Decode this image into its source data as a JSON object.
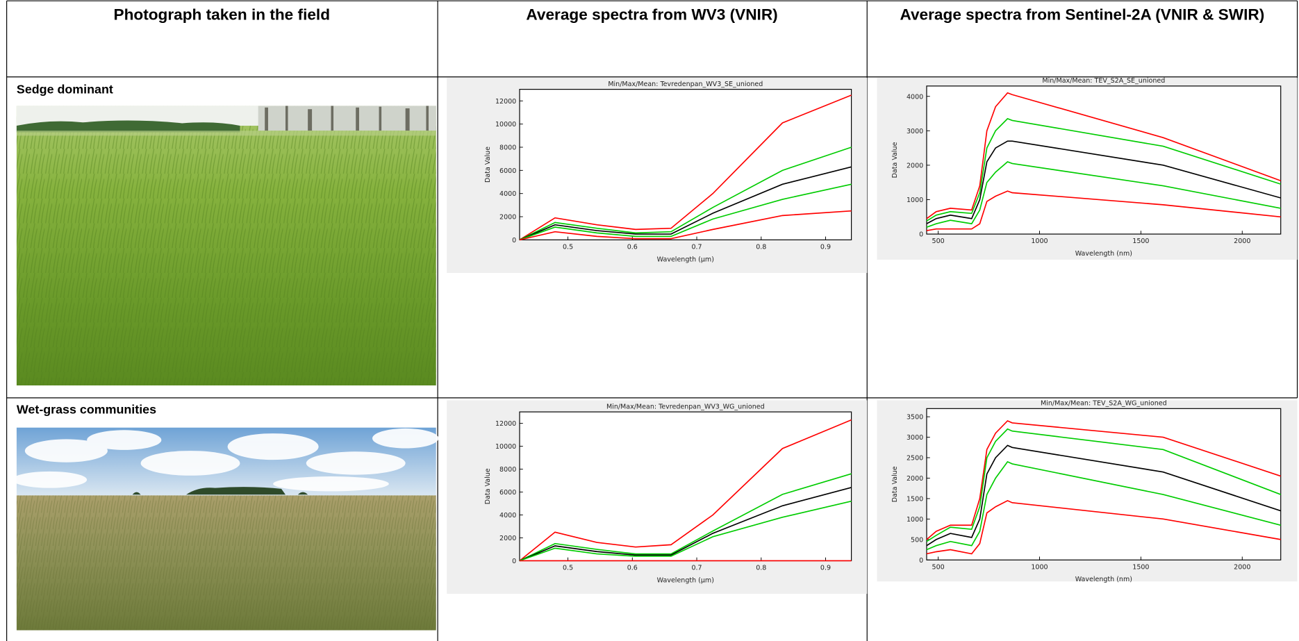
{
  "table": {
    "headers": [
      "Photograph taken in the field",
      "Average spectra from WV3 (VNIR)",
      "Average spectra from Sentinel-2A (VNIR & SWIR)"
    ],
    "rows": [
      {
        "label": "Sedge dominant",
        "charts": [
          {
            "type": "line",
            "title": "Min/Max/Mean: Tevredenpan_WV3_SE_unioned",
            "x_label": "Wavelength (µm)",
            "y_label": "Data Value",
            "x": [
              0.425,
              0.48,
              0.545,
              0.605,
              0.66,
              0.725,
              0.833,
              0.94
            ],
            "xlim": [
              0.425,
              0.94
            ],
            "ylim": [
              0,
              13000
            ],
            "xticks": [
              0.5,
              0.6,
              0.7,
              0.8,
              0.9
            ],
            "yticks": [
              0,
              2000,
              4000,
              6000,
              8000,
              10000,
              12000
            ],
            "series": [
              {
                "color": "#ff0000",
                "values": [
                  0,
                  1900,
                  1300,
                  900,
                  1000,
                  4000,
                  10100,
                  12500
                ]
              },
              {
                "color": "#00cc00",
                "values": [
                  0,
                  1500,
                  1000,
                  600,
                  700,
                  2800,
                  6000,
                  8000
                ]
              },
              {
                "color": "#000000",
                "values": [
                  0,
                  1300,
                  800,
                  500,
                  500,
                  2300,
                  4800,
                  6300
                ]
              },
              {
                "color": "#00cc00",
                "values": [
                  0,
                  1100,
                  600,
                  300,
                  300,
                  1800,
                  3500,
                  4800
                ]
              },
              {
                "color": "#ff0000",
                "values": [
                  0,
                  700,
                  300,
                  100,
                  100,
                  900,
                  2100,
                  2500
                ]
              }
            ]
          },
          {
            "type": "line",
            "title": "Min/Max/Mean: TEV_S2A_SE_unioned",
            "x_label": "Wavelength (nm)",
            "y_label": "Data Value",
            "x": [
              443,
              490,
              560,
              665,
              705,
              740,
              783,
              842,
              865,
              1610,
              2190
            ],
            "xlim": [
              443,
              2190
            ],
            "ylim": [
              0,
              4300
            ],
            "xticks": [
              500,
              1000,
              1500,
              2000
            ],
            "yticks": [
              0,
              1000,
              2000,
              3000,
              4000
            ],
            "series": [
              {
                "color": "#ff0000",
                "values": [
                  450,
                  650,
                  750,
                  700,
                  1400,
                  3000,
                  3700,
                  4100,
                  4050,
                  2800,
                  1550
                ]
              },
              {
                "color": "#00cc00",
                "values": [
                  380,
                  550,
                  650,
                  600,
                  1200,
                  2500,
                  3000,
                  3350,
                  3300,
                  2550,
                  1450
                ]
              },
              {
                "color": "#000000",
                "values": [
                  300,
                  450,
                  550,
                  450,
                  1000,
                  2100,
                  2500,
                  2700,
                  2700,
                  2000,
                  1050
                ]
              },
              {
                "color": "#00cc00",
                "values": [
                  200,
                  300,
                  400,
                  300,
                  700,
                  1500,
                  1800,
                  2100,
                  2050,
                  1400,
                  750
                ]
              },
              {
                "color": "#ff0000",
                "values": [
                  100,
                  150,
                  150,
                  150,
                  300,
                  950,
                  1100,
                  1250,
                  1200,
                  850,
                  500
                ]
              }
            ]
          }
        ]
      },
      {
        "label": "Wet-grass communities",
        "charts": [
          {
            "type": "line",
            "title": "Min/Max/Mean: Tevredenpan_WV3_WG_unioned",
            "x_label": "Wavelength (µm)",
            "y_label": "Data Value",
            "x": [
              0.425,
              0.48,
              0.545,
              0.605,
              0.66,
              0.725,
              0.833,
              0.94
            ],
            "xlim": [
              0.425,
              0.94
            ],
            "ylim": [
              0,
              13000
            ],
            "xticks": [
              0.5,
              0.6,
              0.7,
              0.8,
              0.9
            ],
            "yticks": [
              0,
              2000,
              4000,
              6000,
              8000,
              10000,
              12000
            ],
            "series": [
              {
                "color": "#ff0000",
                "values": [
                  0,
                  2500,
                  1600,
                  1200,
                  1400,
                  4000,
                  9800,
                  12300
                ]
              },
              {
                "color": "#00cc00",
                "values": [
                  0,
                  1500,
                  1000,
                  600,
                  600,
                  2600,
                  5800,
                  7600
                ]
              },
              {
                "color": "#000000",
                "values": [
                  0,
                  1300,
                  800,
                  500,
                  500,
                  2400,
                  4800,
                  6400
                ]
              },
              {
                "color": "#00cc00",
                "values": [
                  0,
                  1100,
                  600,
                  400,
                  400,
                  2100,
                  3800,
                  5200
                ]
              },
              {
                "color": "#ff0000",
                "values": [
                  0,
                  0,
                  0,
                  0,
                  0,
                  0,
                  0,
                  0
                ]
              }
            ]
          },
          {
            "type": "line",
            "title": "Min/Max/Mean: TEV_S2A_WG_unioned",
            "x_label": "Wavelength (nm)",
            "y_label": "Data Value",
            "x": [
              443,
              490,
              560,
              665,
              705,
              740,
              783,
              842,
              865,
              1610,
              2190
            ],
            "xlim": [
              443,
              2190
            ],
            "ylim": [
              0,
              3700
            ],
            "xticks": [
              500,
              1000,
              1500,
              2000
            ],
            "yticks": [
              0,
              500,
              1000,
              1500,
              2000,
              2500,
              3000,
              3500
            ],
            "series": [
              {
                "color": "#ff0000",
                "values": [
                  500,
                  700,
                  850,
                  850,
                  1500,
                  2700,
                  3100,
                  3400,
                  3350,
                  3000,
                  2050
                ]
              },
              {
                "color": "#00cc00",
                "values": [
                  450,
                  600,
                  800,
                  750,
                  1300,
                  2500,
                  2900,
                  3200,
                  3150,
                  2700,
                  1600
                ]
              },
              {
                "color": "#000000",
                "values": [
                  350,
                  500,
                  650,
                  550,
                  1000,
                  2100,
                  2500,
                  2800,
                  2750,
                  2150,
                  1200
                ]
              },
              {
                "color": "#00cc00",
                "values": [
                  250,
                  350,
                  450,
                  350,
                  700,
                  1600,
                  2000,
                  2400,
                  2350,
                  1600,
                  850
                ]
              },
              {
                "color": "#ff0000",
                "values": [
                  150,
                  200,
                  250,
                  150,
                  400,
                  1150,
                  1300,
                  1450,
                  1400,
                  1000,
                  500
                ]
              }
            ]
          }
        ]
      }
    ]
  }
}
